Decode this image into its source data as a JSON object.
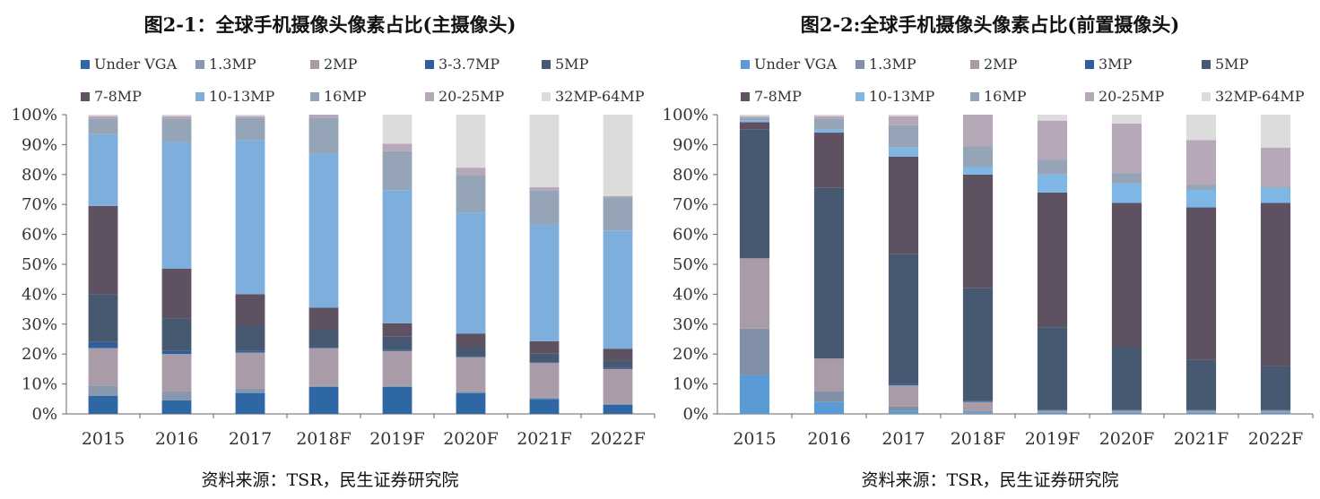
{
  "chart_data": [
    {
      "type": "bar",
      "stacked": true,
      "title": "图2-1：全球手机摄像头像素占比(主摄像头)",
      "source": "资料来源：TSR，民生证券研究院",
      "categories": [
        "2015",
        "2016",
        "2017",
        "2018F",
        "2019F",
        "2020F",
        "2021F",
        "2022F"
      ],
      "ylim": [
        0,
        100
      ],
      "yticks": [
        "0%",
        "10%",
        "20%",
        "30%",
        "40%",
        "50%",
        "60%",
        "70%",
        "80%",
        "90%",
        "100%"
      ],
      "legend_position": "top",
      "series": [
        {
          "name": "Under VGA",
          "color": "#2e67a3",
          "values": [
            6,
            4.5,
            7,
            9,
            9,
            7,
            5,
            3
          ]
        },
        {
          "name": "1.3MP",
          "color": "#8797ad",
          "values": [
            3.5,
            3,
            1.5,
            0.5,
            0.5,
            0.5,
            0.5,
            0.5
          ]
        },
        {
          "name": "2MP",
          "color": "#a99ca8",
          "values": [
            12.5,
            12.5,
            12,
            12.5,
            11.5,
            11.5,
            11.5,
            11.5
          ]
        },
        {
          "name": "3-3.7MP",
          "color": "#2e5f9c",
          "values": [
            2,
            1,
            0.5,
            0.3,
            0.3,
            0.3,
            0.3,
            0.3
          ]
        },
        {
          "name": "5MP",
          "color": "#465970",
          "values": [
            16,
            11,
            8.5,
            5.7,
            4.5,
            3,
            3,
            2.5
          ]
        },
        {
          "name": "7-8MP",
          "color": "#5e5262",
          "values": [
            29.5,
            16.5,
            10.5,
            7.5,
            4.5,
            4.5,
            4,
            4
          ]
        },
        {
          "name": "10-13MP",
          "color": "#7eaedc",
          "values": [
            24,
            42.5,
            51.5,
            51.5,
            44.5,
            40.5,
            39,
            39.5
          ]
        },
        {
          "name": "16MP",
          "color": "#95a4b7",
          "values": [
            5,
            7.5,
            7.5,
            12,
            13,
            12.5,
            11.5,
            11
          ]
        },
        {
          "name": "20-25MP",
          "color": "#b6a8b8",
          "values": [
            1,
            1,
            0.5,
            1,
            2.5,
            2.5,
            1,
            0.5
          ]
        },
        {
          "name": "32MP-64MP",
          "color": "#dcdcdc",
          "values": [
            0.5,
            0.5,
            0.5,
            0,
            9.7,
            17.7,
            24.2,
            27.2
          ]
        }
      ]
    },
    {
      "type": "bar",
      "stacked": true,
      "title": "图2-2:全球手机摄像头像素占比(前置摄像头)",
      "source": "资料来源：TSR，民生证券研究院",
      "categories": [
        "2015",
        "2016",
        "2017",
        "2018F",
        "2019F",
        "2020F",
        "2021F",
        "2022F"
      ],
      "ylim": [
        0,
        100
      ],
      "yticks": [
        "0%",
        "10%",
        "20%",
        "30%",
        "40%",
        "50%",
        "60%",
        "70%",
        "80%",
        "90%",
        "100%"
      ],
      "legend_position": "top",
      "series": [
        {
          "name": "Under VGA",
          "color": "#5b9bd5",
          "values": [
            13,
            4,
            1,
            0.5,
            0.5,
            0.5,
            0.5,
            0.5
          ]
        },
        {
          "name": "1.3MP",
          "color": "#8190a6",
          "values": [
            15.5,
            3.5,
            1.5,
            0.5,
            0.3,
            0.3,
            0.3,
            0.3
          ]
        },
        {
          "name": "2MP",
          "color": "#a99ca8",
          "values": [
            23.5,
            11,
            7,
            3,
            0.3,
            0.3,
            0.3,
            0.3
          ]
        },
        {
          "name": "3MP",
          "color": "#2e5f9c",
          "values": [
            0,
            0,
            0.5,
            0.3,
            0.2,
            0.2,
            0.2,
            0.2
          ]
        },
        {
          "name": "5MP",
          "color": "#465970",
          "values": [
            43,
            57,
            43.5,
            37.7,
            27.7,
            21,
            16.7,
            14.7
          ]
        },
        {
          "name": "7-8MP",
          "color": "#5e5262",
          "values": [
            2.5,
            18.5,
            32.5,
            38,
            45,
            48.2,
            51,
            54.5
          ]
        },
        {
          "name": "10-13MP",
          "color": "#7eb6e6",
          "values": [
            0.5,
            1,
            3,
            2.5,
            6,
            6.5,
            6,
            5
          ]
        },
        {
          "name": "16MP",
          "color": "#95a4b7",
          "values": [
            1,
            3.5,
            7.5,
            7,
            5,
            3.5,
            1.5,
            0.5
          ]
        },
        {
          "name": "20-25MP",
          "color": "#b6a8b8",
          "values": [
            0.5,
            1,
            3,
            10.5,
            13,
            16.5,
            15,
            13
          ]
        },
        {
          "name": "32MP-64MP",
          "color": "#dcdcdc",
          "values": [
            0.5,
            0.5,
            0.5,
            0,
            2,
            3,
            8.5,
            11
          ]
        }
      ]
    }
  ]
}
